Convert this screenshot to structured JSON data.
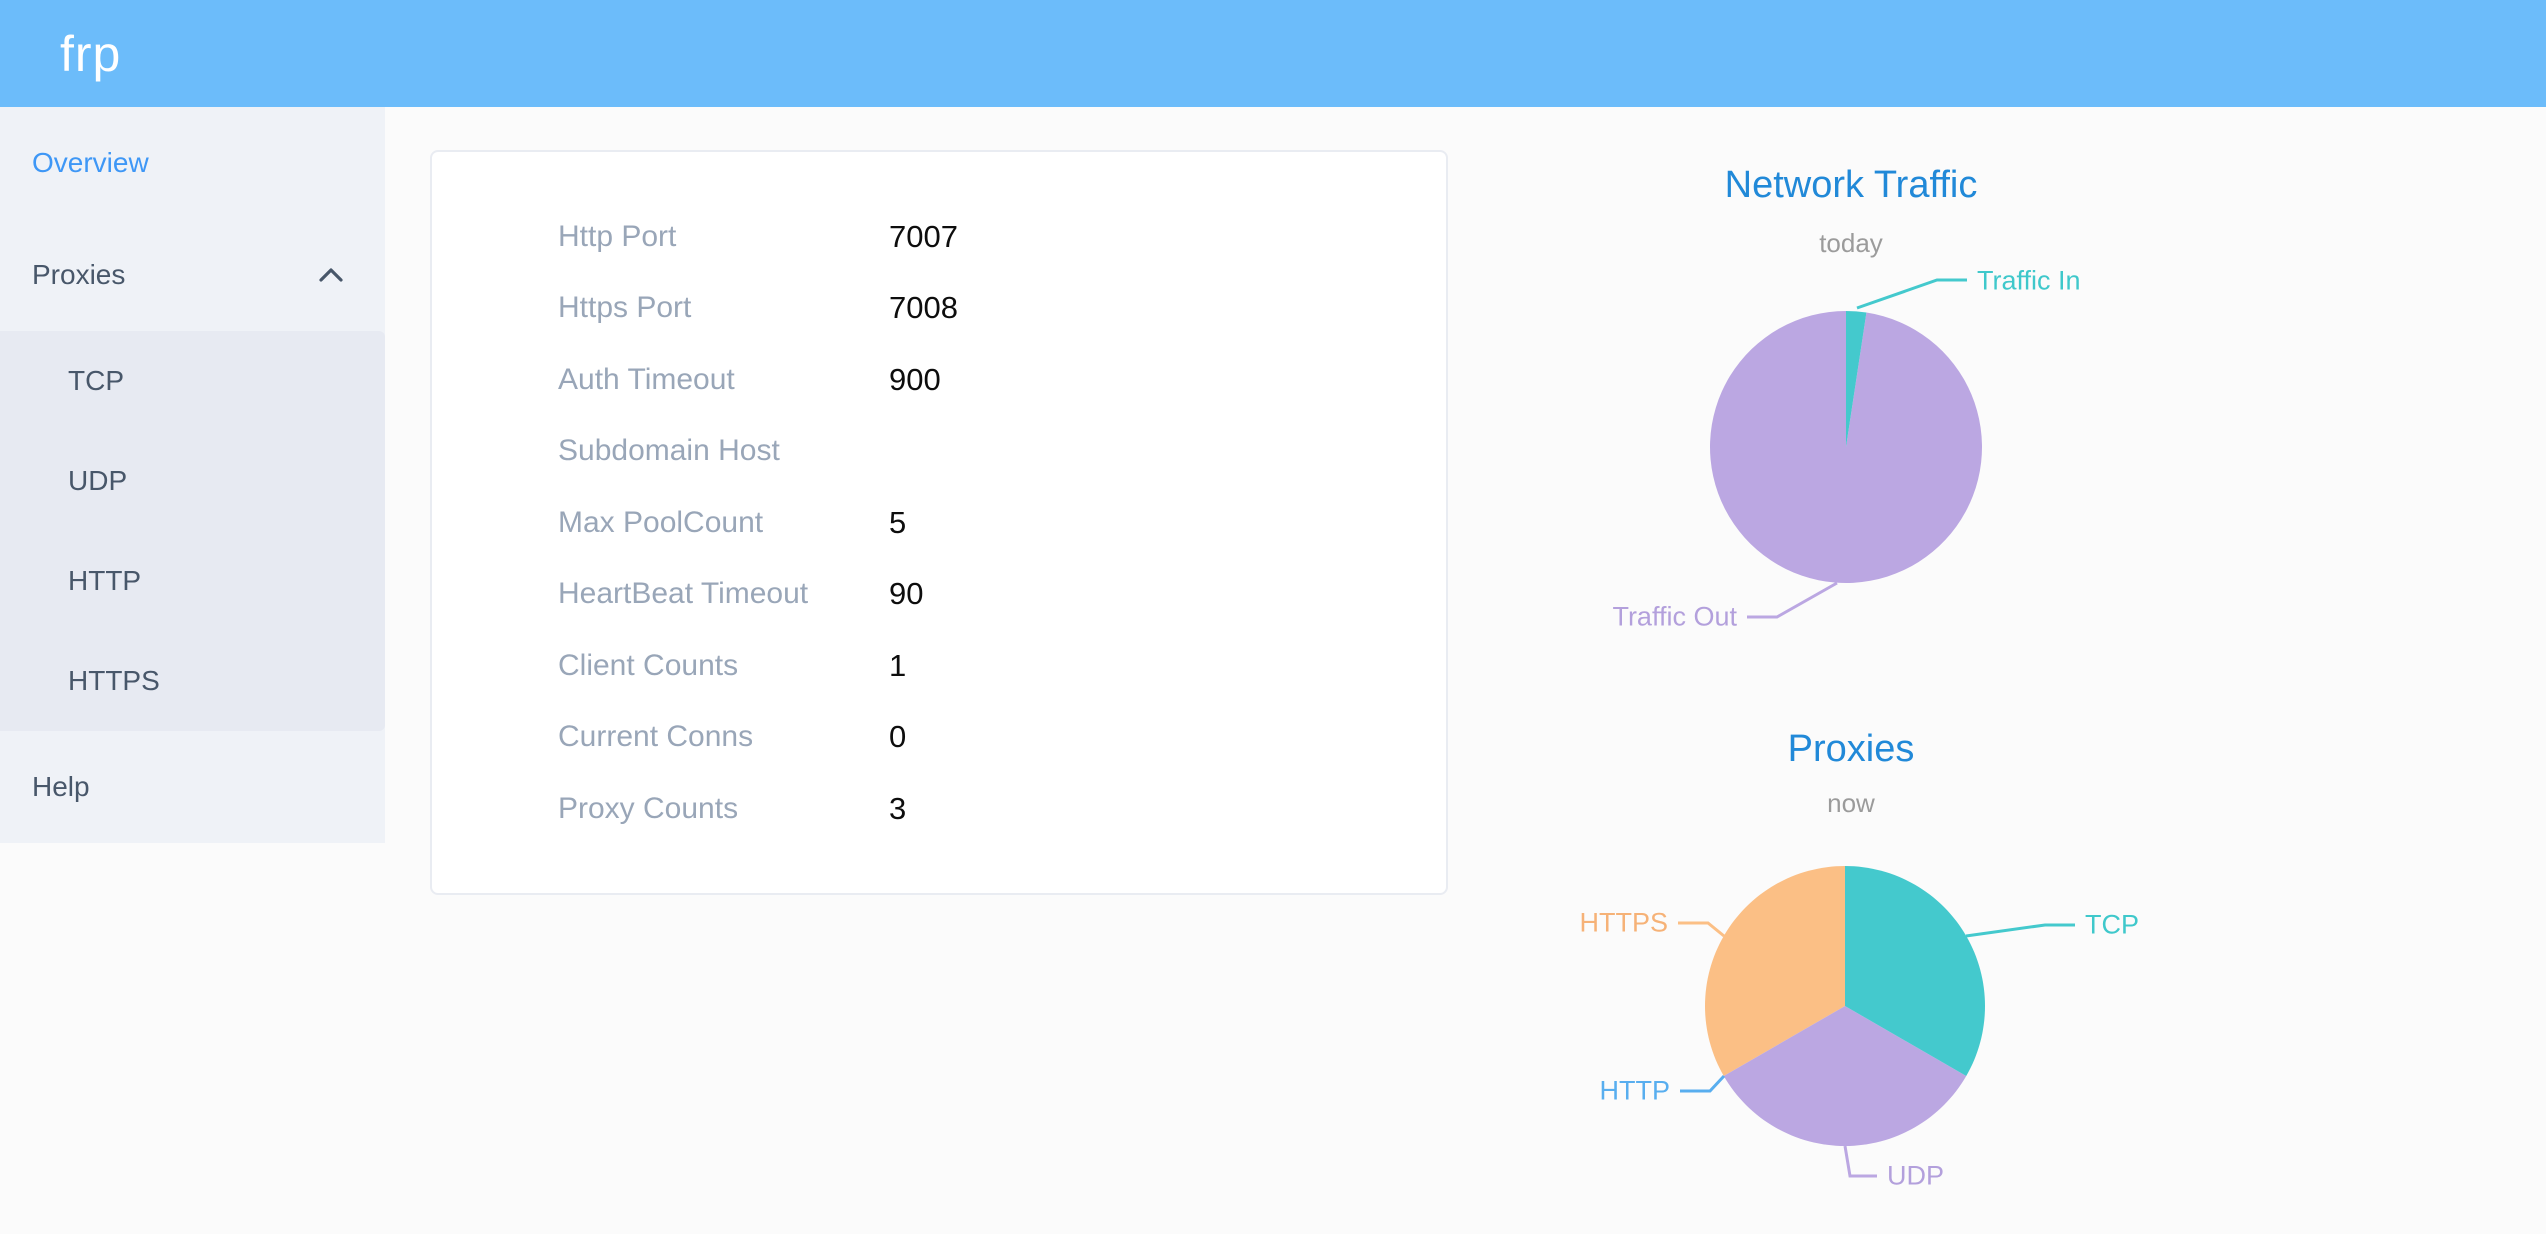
{
  "header": {
    "logo": "frp"
  },
  "colors": {
    "header_bg": "#6cbcfa",
    "active_link": "#3e97f6",
    "menu_text": "#48576a",
    "chart_title": "#2189d8",
    "teal": "#44c9cd",
    "purple": "#bba7e2",
    "blue": "#58aeef",
    "orange": "#fbbf85"
  },
  "sidebar": {
    "overview": "Overview",
    "proxies": "Proxies",
    "submenu": [
      "TCP",
      "UDP",
      "HTTP",
      "HTTPS"
    ],
    "help": "Help"
  },
  "server_info": {
    "rows": [
      {
        "label": "Http Port",
        "value": "7007"
      },
      {
        "label": "Https Port",
        "value": "7008"
      },
      {
        "label": "Auth Timeout",
        "value": "900"
      },
      {
        "label": "Subdomain Host",
        "value": ""
      },
      {
        "label": "Max PoolCount",
        "value": "5"
      },
      {
        "label": "HeartBeat Timeout",
        "value": "90"
      },
      {
        "label": "Client Counts",
        "value": "1"
      },
      {
        "label": "Current Conns",
        "value": "0"
      },
      {
        "label": "Proxy Counts",
        "value": "3"
      }
    ]
  },
  "chart_data": [
    {
      "type": "pie",
      "title": "Network Traffic",
      "subtitle": "today",
      "start_angle_deg": 0,
      "clockwise": true,
      "values_estimated_percent": true,
      "series": [
        {
          "name": "Traffic In",
          "value": 2.4,
          "color": "#44c9cd"
        },
        {
          "name": "Traffic Out",
          "value": 97.6,
          "color": "#bba7e2"
        }
      ]
    },
    {
      "type": "pie",
      "title": "Proxies",
      "subtitle": "now",
      "start_angle_deg": 0,
      "clockwise": true,
      "series": [
        {
          "name": "TCP",
          "value": 1,
          "color": "#44c9cd"
        },
        {
          "name": "UDP",
          "value": 1,
          "color": "#bba7e2"
        },
        {
          "name": "HTTP",
          "value": 0,
          "color": "#58aeef"
        },
        {
          "name": "HTTPS",
          "value": 1,
          "color": "#fbbf85"
        }
      ]
    }
  ]
}
